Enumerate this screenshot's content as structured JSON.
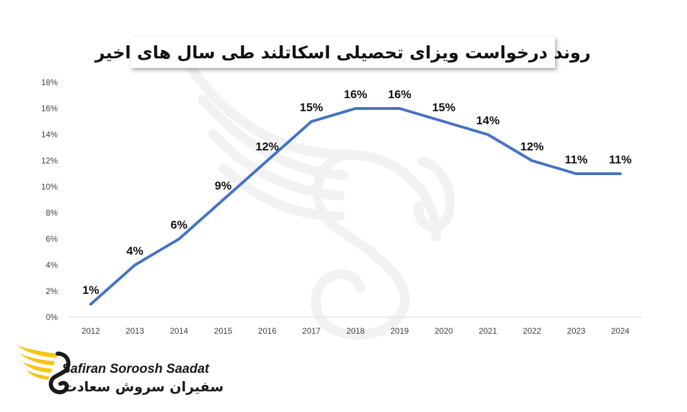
{
  "chart_data": {
    "type": "line",
    "title": "روند درخواست ویزای تحصیلی اسکاتلند طی سال های اخیر",
    "categories": [
      "2012",
      "2013",
      "2014",
      "2015",
      "2016",
      "2017",
      "2018",
      "2019",
      "2020",
      "2021",
      "2022",
      "2023",
      "2024"
    ],
    "values": [
      1,
      4,
      6,
      9,
      12,
      15,
      16,
      16,
      15,
      14,
      12,
      11,
      11
    ],
    "data_labels": [
      "1%",
      "4%",
      "6%",
      "9%",
      "12%",
      "15%",
      "16%",
      "16%",
      "15%",
      "14%",
      "12%",
      "11%",
      "11%"
    ],
    "y_ticks": [
      "0%",
      "2%",
      "4%",
      "6%",
      "8%",
      "10%",
      "12%",
      "14%",
      "16%",
      "18%"
    ],
    "ylim": [
      0,
      18
    ],
    "y_step": 2,
    "xlabel": "",
    "ylabel": "",
    "grid": false,
    "legend": "none",
    "line_color": "#4472c4"
  },
  "brand": {
    "name_en": "Safiran Soroosh Saadat",
    "name_fa": "سفیران سروش سعادت",
    "accent_color": "#f5c518",
    "text_color": "#1a1a1a",
    "logo_icon": "swan-wing-icon"
  },
  "watermark": {
    "icon": "swan-wing-watermark-icon"
  }
}
